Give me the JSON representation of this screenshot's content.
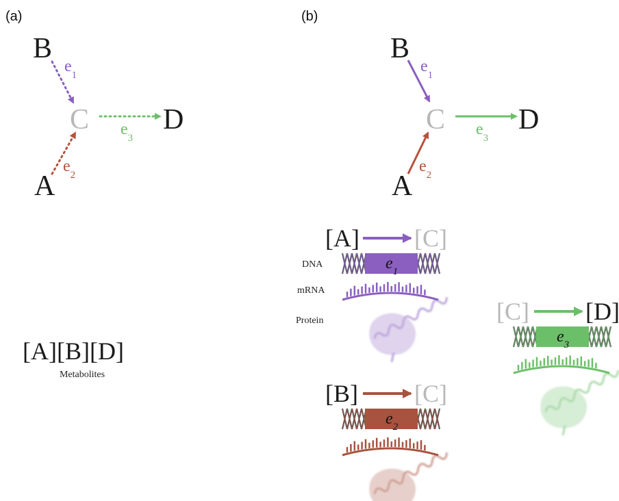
{
  "panel_a": {
    "label": "(a)",
    "nodes": [
      "A",
      "B",
      "C",
      "D"
    ],
    "edges": [
      {
        "name": "e",
        "sub": "1"
      },
      {
        "name": "e",
        "sub": "2"
      },
      {
        "name": "e",
        "sub": "3"
      }
    ],
    "metabolites": {
      "items": [
        "[A]",
        "[B]",
        "[D]"
      ],
      "caption": "Metabolites"
    }
  },
  "panel_b": {
    "label": "(b)",
    "nodes": [
      "A",
      "B",
      "C",
      "D"
    ],
    "edges": [
      {
        "name": "e",
        "sub": "1"
      },
      {
        "name": "e",
        "sub": "2"
      },
      {
        "name": "e",
        "sub": "3"
      }
    ],
    "levels": [
      "DNA",
      "mRNA",
      "Protein"
    ],
    "genes": [
      {
        "input": "[A]",
        "output": "[C]",
        "enzyme": "e",
        "sub": "1"
      },
      {
        "input": "[B]",
        "output": "[C]",
        "enzyme": "e",
        "sub": "2"
      },
      {
        "input": "[C]",
        "output": "[D]",
        "enzyme": "e",
        "sub": "3"
      }
    ]
  }
}
